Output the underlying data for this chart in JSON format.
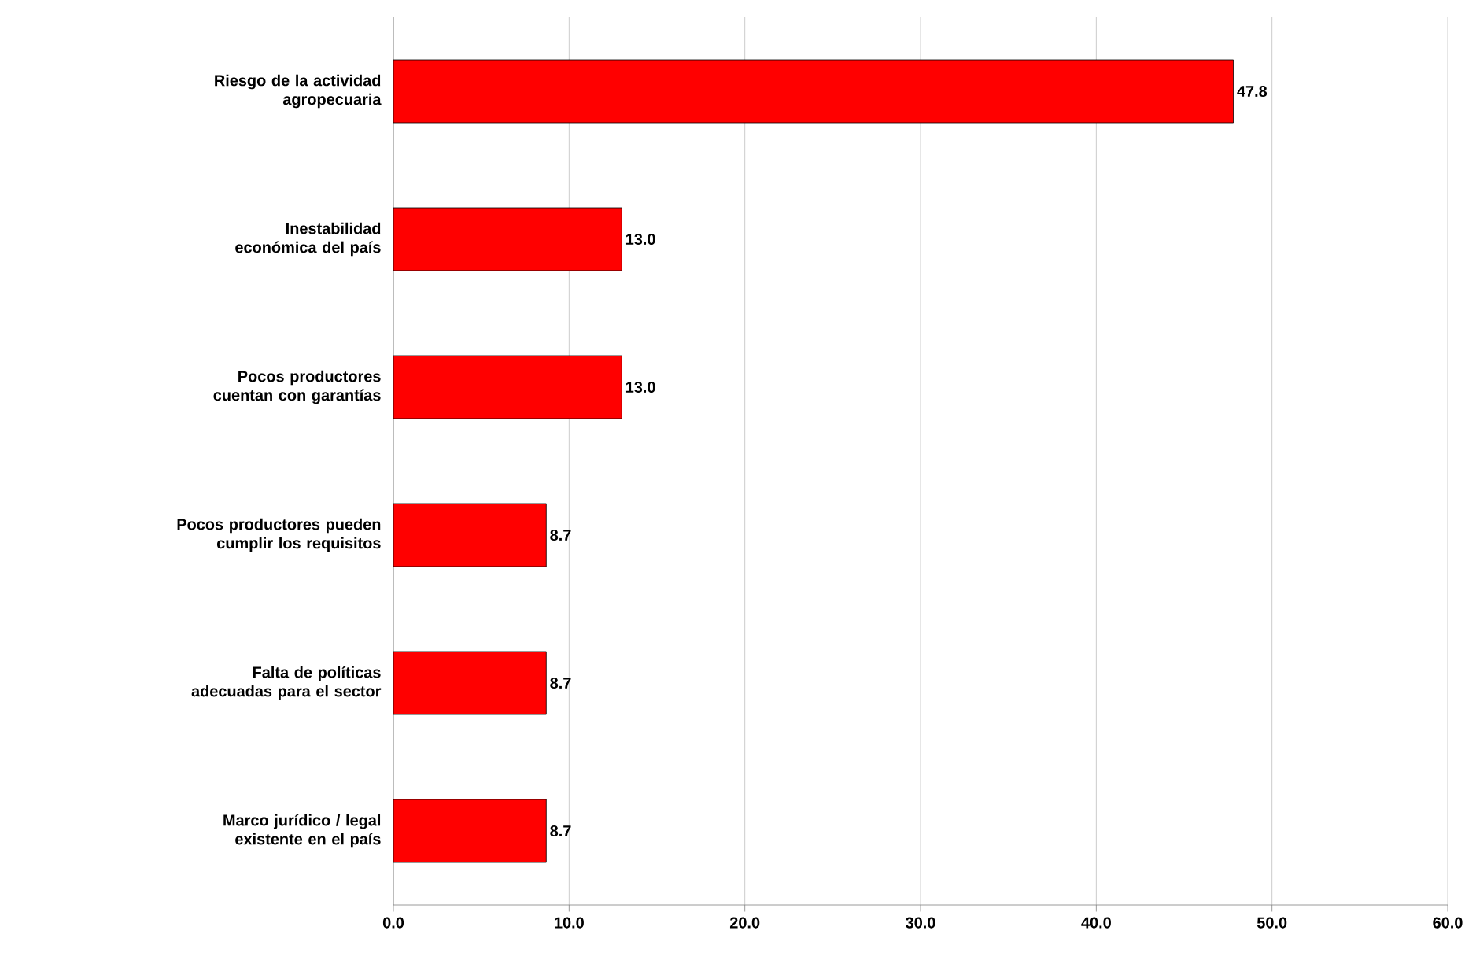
{
  "chart_data": {
    "type": "bar",
    "orientation": "horizontal",
    "categories": [
      "Riesgo de la actividad agropecuaria",
      "Inestabilidad económica del país",
      "Pocos productores cuentan con garantías",
      "Pocos productores pueden cumplir los requisitos",
      "Falta de políticas adecuadas para el sector",
      "Marco jurídico / legal existente en el país"
    ],
    "values": [
      47.8,
      13.0,
      13.0,
      8.7,
      8.7,
      8.7
    ],
    "value_labels": [
      "47.8",
      "13.0",
      "13.0",
      "8.7",
      "8.7",
      "8.7"
    ],
    "color": "#ff0000",
    "xlim": [
      0,
      60
    ],
    "xticks": [
      {
        "value": 0,
        "label": "0.0"
      },
      {
        "value": 10,
        "label": "10.0"
      },
      {
        "value": 20,
        "label": "20.0"
      },
      {
        "value": 30,
        "label": "30.0"
      },
      {
        "value": 40,
        "label": "40.0"
      },
      {
        "value": 50,
        "label": "50.0"
      },
      {
        "value": 60,
        "label": "60.0"
      }
    ],
    "grid": "x"
  }
}
